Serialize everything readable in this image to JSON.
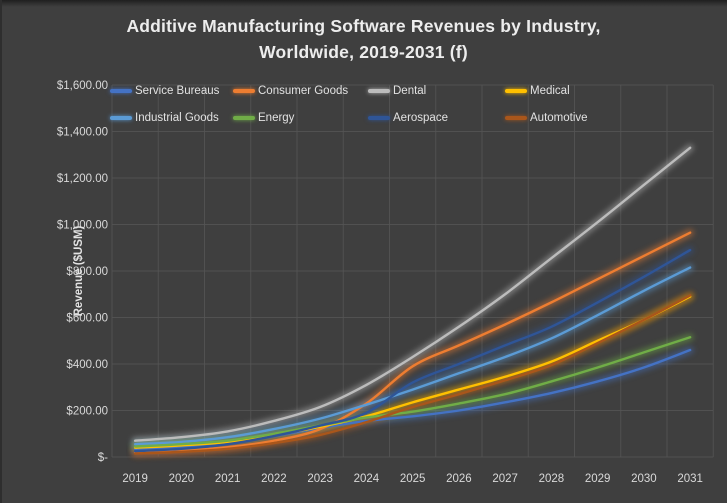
{
  "window": {
    "background": "#3f3f3f",
    "gridline_color": "#555555",
    "text_color": "#d9d9d9"
  },
  "title": {
    "line1": "Additive Manufacturing Software Revenues by Industry,",
    "line2": "Worldwide, 2019-2031 (f)"
  },
  "chart_data": {
    "type": "line",
    "title": "Additive Manufacturing Software Revenues by Industry, Worldwide, 2019-2031 (f)",
    "xlabel": "",
    "ylabel": "Revenue ($USM)",
    "x": [
      2019,
      2020,
      2021,
      2022,
      2023,
      2024,
      2025,
      2026,
      2027,
      2028,
      2029,
      2030,
      2031
    ],
    "x_tick_labels": [
      "2019",
      "2020",
      "2021",
      "2022",
      "2023",
      "2024",
      "2025",
      "2026",
      "2027",
      "2028",
      "2029",
      "2030",
      "2031"
    ],
    "ylim": [
      0,
      1600
    ],
    "y_tick_interval": 200,
    "y_tick_labels": [
      "$1,600.00",
      "$1,400.00",
      "$1,200.00",
      "$1,000.00",
      "$800.00",
      "$600.00",
      "$400.00",
      "$200.00",
      "$-"
    ],
    "grid": "both",
    "line_style": "smooth-with-glow",
    "legend_position": "top-inside-two-rows",
    "series": [
      {
        "name": "Service Bureaus",
        "color": "#4472C4",
        "values": [
          35,
          45,
          60,
          90,
          125,
          155,
          175,
          200,
          235,
          275,
          325,
          385,
          460
        ]
      },
      {
        "name": "Consumer Goods",
        "color": "#ED7D31",
        "values": [
          20,
          28,
          42,
          70,
          120,
          230,
          390,
          480,
          570,
          665,
          765,
          865,
          965
        ]
      },
      {
        "name": "Dental",
        "color": "#BCBCBC",
        "values": [
          70,
          85,
          110,
          155,
          215,
          310,
          430,
          560,
          700,
          855,
          1010,
          1170,
          1330
        ]
      },
      {
        "name": "Medical",
        "color": "#FFC000",
        "values": [
          40,
          50,
          65,
          95,
          130,
          175,
          235,
          290,
          345,
          410,
          500,
          590,
          690
        ]
      },
      {
        "name": "Industrial Goods",
        "color": "#5B9BD5",
        "values": [
          55,
          65,
          85,
          120,
          165,
          225,
          290,
          360,
          430,
          510,
          610,
          715,
          815
        ]
      },
      {
        "name": "Energy",
        "color": "#70AD47",
        "values": [
          45,
          55,
          70,
          100,
          135,
          170,
          195,
          230,
          270,
          325,
          385,
          450,
          515
        ]
      },
      {
        "name": "Aerospace",
        "color": "#2F5597",
        "values": [
          25,
          35,
          55,
          90,
          135,
          190,
          320,
          400,
          480,
          560,
          665,
          775,
          890
        ]
      },
      {
        "name": "Automotive",
        "color": "#A9561B",
        "values": [
          15,
          22,
          35,
          60,
          95,
          150,
          215,
          270,
          330,
          395,
          490,
          590,
          695
        ]
      }
    ]
  },
  "legend": {
    "row1": [
      "Service Bureaus",
      "Consumer Goods",
      "Dental",
      "Medical"
    ],
    "row2": [
      "Industrial Goods",
      "Energy",
      "Aerospace",
      "Automotive"
    ]
  }
}
